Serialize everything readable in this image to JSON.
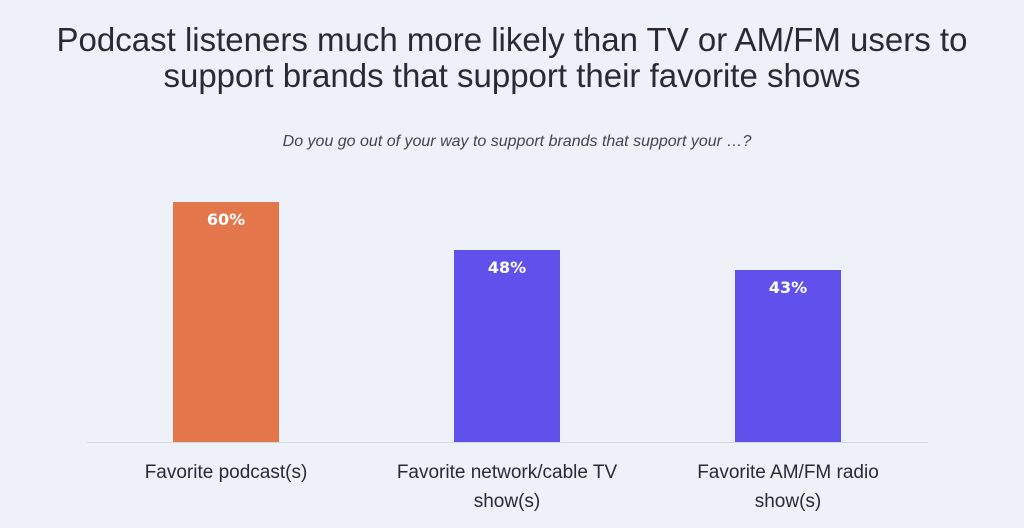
{
  "chart_data": {
    "type": "bar",
    "title_lines": [
      "Podcast listeners much more likely than TV or AM/FM users to",
      "support brands that support their favorite shows"
    ],
    "subtitle": "Do you go out of your way to support brands that support your …?",
    "categories": [
      "Favorite podcast(s)",
      "Favorite network/cable TV show(s)",
      "Favorite AM/FM radio show(s)"
    ],
    "category_lines": [
      [
        "Favorite podcast(s)"
      ],
      [
        "Favorite network/cable TV",
        "show(s)"
      ],
      [
        "Favorite AM/FM radio",
        "show(s)"
      ]
    ],
    "values": [
      60,
      48,
      43
    ],
    "data_labels": [
      "60%",
      "48%",
      "43%"
    ],
    "colors": [
      "#e3764b",
      "#6050ec",
      "#6050ec"
    ],
    "xlabel": "",
    "ylabel": "",
    "ylim": [
      0,
      60
    ],
    "grid": false,
    "legend": "none"
  }
}
